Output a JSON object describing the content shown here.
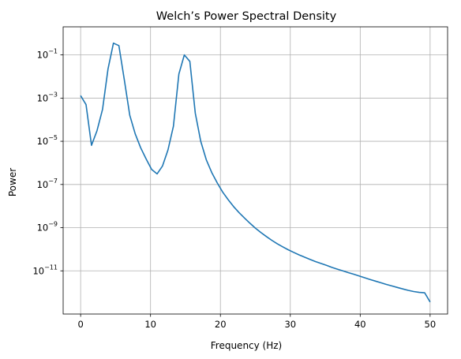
{
  "chart_data": {
    "type": "line",
    "title": "Welch’s Power Spectral Density",
    "xlabel": "Frequency (Hz)",
    "ylabel": "Power",
    "xscale": "linear",
    "yscale": "log",
    "xlim": [
      -2.5,
      52.5
    ],
    "ylim": [
      1e-13,
      2
    ],
    "grid": true,
    "line_color": "#1f77b4",
    "x_ticks": [
      0,
      10,
      20,
      30,
      40,
      50
    ],
    "x_tick_labels": [
      "0",
      "10",
      "20",
      "30",
      "40",
      "50"
    ],
    "y_ticks": [
      1e-11,
      1e-09,
      1e-07,
      1e-05,
      0.001,
      0.1
    ],
    "y_tick_labels": [
      {
        "base": "10",
        "exp": "−11"
      },
      {
        "base": "10",
        "exp": "−9"
      },
      {
        "base": "10",
        "exp": "−7"
      },
      {
        "base": "10",
        "exp": "−5"
      },
      {
        "base": "10",
        "exp": "−3"
      },
      {
        "base": "10",
        "exp": "−1"
      }
    ],
    "series": [
      {
        "x": [
          0,
          0.78,
          1.56,
          2.34,
          3.13,
          3.91,
          4.69,
          5.47,
          6.25,
          7.03,
          7.81,
          8.59,
          9.38,
          10.16,
          10.94,
          11.72,
          12.5,
          13.28,
          14.06,
          14.84,
          15.63,
          16.41,
          17.19,
          17.97,
          18.75,
          19.53,
          20.31,
          21.09,
          21.88,
          22.66,
          23.44,
          24.22,
          25,
          25.78,
          26.56,
          27.34,
          28.13,
          28.91,
          29.69,
          30.47,
          31.25,
          32.03,
          32.81,
          33.59,
          34.38,
          35.16,
          35.94,
          36.72,
          37.5,
          38.28,
          39.06,
          39.84,
          40.63,
          41.41,
          42.19,
          42.97,
          43.75,
          44.53,
          45.31,
          46.09,
          46.88,
          47.66,
          48.44,
          49.22,
          50
        ],
        "y": [
          0.0013,
          0.0005,
          6.5e-06,
          3.1e-05,
          0.0003,
          0.022,
          0.35,
          0.27,
          0.007,
          0.00016,
          2.2e-05,
          5e-06,
          1.5e-06,
          5e-07,
          3.1e-07,
          7.2e-07,
          4e-06,
          5e-05,
          0.013,
          0.1,
          0.05,
          0.0002,
          1e-05,
          1.4e-06,
          3.6e-07,
          1.2e-07,
          4.5e-08,
          2e-08,
          9.5e-09,
          5e-09,
          2.8e-09,
          1.6e-09,
          9.5e-10,
          6e-10,
          3.9e-10,
          2.6e-10,
          1.8e-10,
          1.3e-10,
          9.5e-11,
          7.2e-11,
          5.5e-11,
          4.3e-11,
          3.4e-11,
          2.7e-11,
          2.2e-11,
          1.8e-11,
          1.45e-11,
          1.2e-11,
          1e-11,
          8.3e-12,
          7e-12,
          5.8e-12,
          4.8e-12,
          4e-12,
          3.35e-12,
          2.8e-12,
          2.35e-12,
          2e-12,
          1.7e-12,
          1.45e-12,
          1.25e-12,
          1.1e-12,
          1e-12,
          9.6e-13,
          3.6e-13
        ]
      }
    ]
  }
}
